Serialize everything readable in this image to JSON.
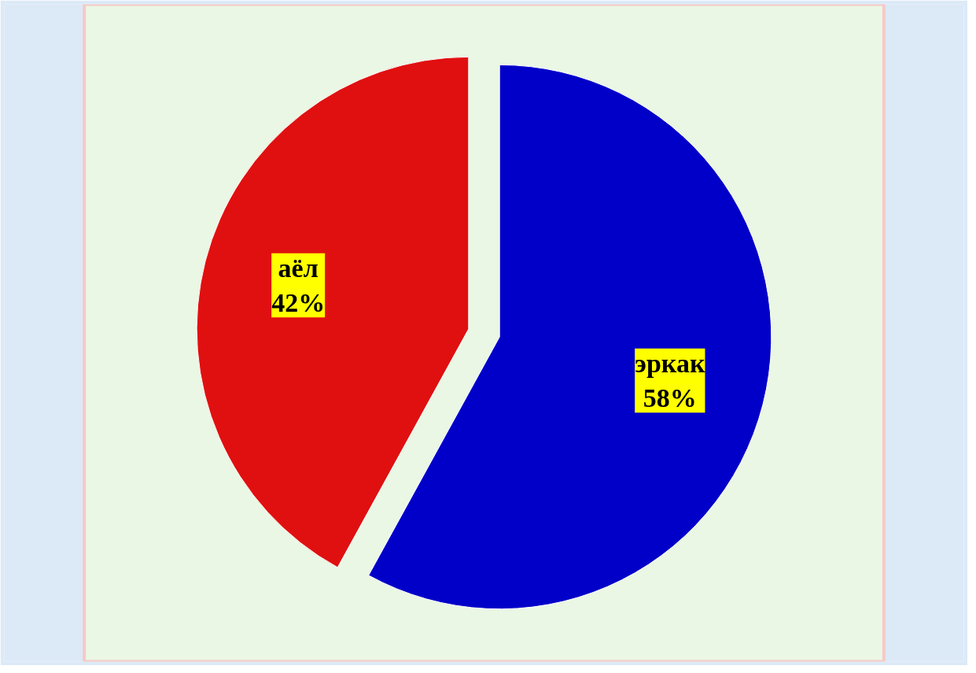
{
  "chart_data": {
    "type": "pie",
    "categories": [
      "эркак",
      "аёл"
    ],
    "values": [
      58,
      42
    ],
    "colors": [
      "#0000c8",
      "#e01010"
    ],
    "value_labels": [
      "58%",
      "42%"
    ]
  }
}
